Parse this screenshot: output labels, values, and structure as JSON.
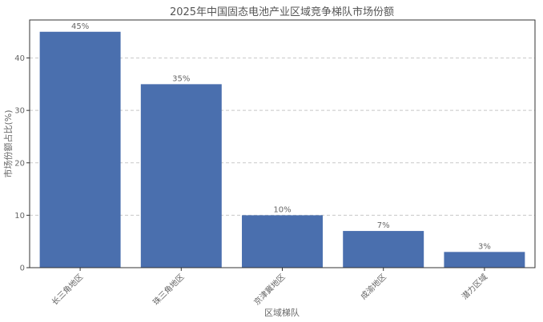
{
  "chart_data": {
    "type": "bar",
    "title": "2025年中国固态电池产业区域竞争梯队市场份额",
    "xlabel": "区域梯队",
    "ylabel": "市场份额占比(%)",
    "categories": [
      "长三角地区",
      "珠三角地区",
      "京津冀地区",
      "成渝地区",
      "潜力区域"
    ],
    "values": [
      45,
      35,
      10,
      7,
      3
    ],
    "data_labels": [
      "45%",
      "35%",
      "10%",
      "7%",
      "3%"
    ],
    "yticks": [
      0,
      10,
      20,
      30,
      40
    ],
    "ylim": [
      0,
      47.25
    ],
    "grid": "y-dashed",
    "bar_color": "#4a6fae"
  }
}
